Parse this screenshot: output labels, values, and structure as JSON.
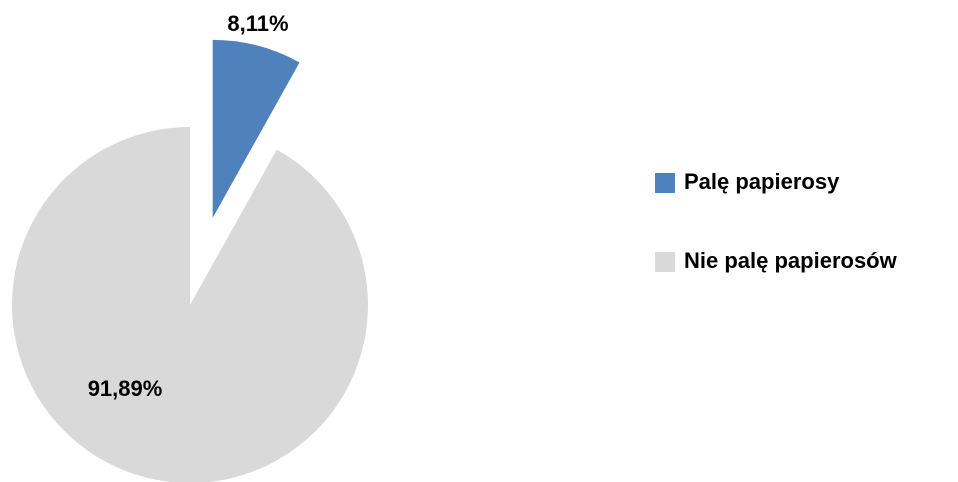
{
  "chart_data": {
    "type": "pie",
    "categories": [
      "Palę papierosy",
      "Nie palę papierosów"
    ],
    "values": [
      8.11,
      91.89
    ],
    "value_labels": [
      "8,11%",
      "91,89%"
    ],
    "colors": [
      "#4f81bd",
      "#d9d9d9"
    ],
    "legend": "right"
  }
}
